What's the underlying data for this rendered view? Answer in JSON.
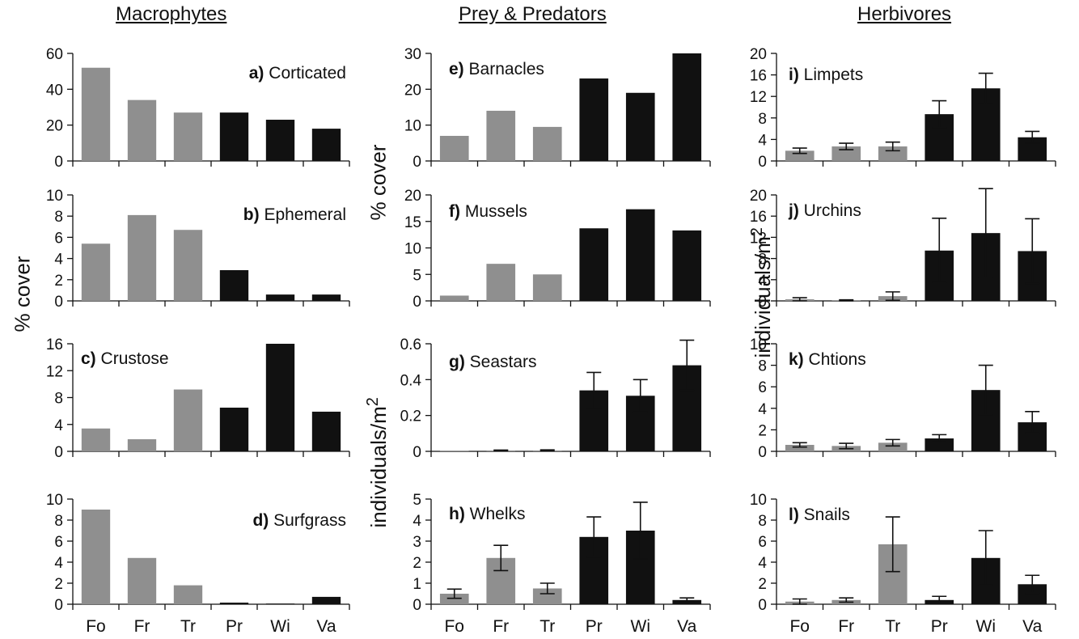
{
  "column_titles": [
    "Macrophytes",
    "Prey & Predators",
    "Herbivores"
  ],
  "axis_labels": {
    "macrophytes_y": "% cover",
    "prey_cover_y": "% cover",
    "prey_density_y": "individuals/m",
    "prey_density_y_sup": "2",
    "herbivores_y": "individuals/m",
    "herbivores_y_sup": "2"
  },
  "colors": {
    "gray": "#8f8f8f",
    "black": "#111111"
  },
  "chart_data": [
    {
      "id": "a",
      "type": "bar",
      "panel": "a)",
      "title": "Corticated",
      "categories": [
        "Fo",
        "Fr",
        "Tr",
        "Pr",
        "Wi",
        "Va"
      ],
      "values": [
        52,
        34,
        27,
        27,
        23,
        18
      ],
      "bar_colors": [
        "gray",
        "gray",
        "gray",
        "black",
        "black",
        "black"
      ],
      "ylim": [
        0,
        60
      ],
      "yticks": [
        "0",
        "20",
        "40",
        "60"
      ],
      "ylabel": "% cover",
      "show_xticklabels": false
    },
    {
      "id": "b",
      "type": "bar",
      "panel": "b)",
      "title": "Ephemeral",
      "categories": [
        "Fo",
        "Fr",
        "Tr",
        "Pr",
        "Wi",
        "Va"
      ],
      "values": [
        5.4,
        8.1,
        6.7,
        2.9,
        0.6,
        0.6
      ],
      "bar_colors": [
        "gray",
        "gray",
        "gray",
        "black",
        "black",
        "black"
      ],
      "ylim": [
        0,
        10
      ],
      "yticks": [
        "0",
        "2",
        "4",
        "6",
        "8",
        "10"
      ],
      "ylabel": "% cover",
      "show_xticklabels": false
    },
    {
      "id": "c",
      "type": "bar",
      "panel": "c)",
      "title": "Crustose",
      "categories": [
        "Fo",
        "Fr",
        "Tr",
        "Pr",
        "Wi",
        "Va"
      ],
      "values": [
        3.4,
        1.8,
        9.2,
        6.5,
        16,
        5.9
      ],
      "bar_colors": [
        "gray",
        "gray",
        "gray",
        "black",
        "black",
        "black"
      ],
      "ylim": [
        0,
        16
      ],
      "yticks": [
        "0",
        "4",
        "8",
        "12",
        "16"
      ],
      "ylabel": "% cover",
      "show_xticklabels": false
    },
    {
      "id": "d",
      "type": "bar",
      "panel": "d)",
      "title": "Surfgrass",
      "categories": [
        "Fo",
        "Fr",
        "Tr",
        "Pr",
        "Wi",
        "Va"
      ],
      "values": [
        9,
        4.4,
        1.8,
        0.15,
        0,
        0.7
      ],
      "bar_colors": [
        "gray",
        "gray",
        "gray",
        "black",
        "black",
        "black"
      ],
      "ylim": [
        0,
        10
      ],
      "yticks": [
        "0",
        "2",
        "4",
        "6",
        "8",
        "10"
      ],
      "ylabel": "% cover",
      "show_xticklabels": true
    },
    {
      "id": "e",
      "type": "bar",
      "panel": "e)",
      "title": "Barnacles",
      "categories": [
        "Fo",
        "Fr",
        "Tr",
        "Pr",
        "Wi",
        "Va"
      ],
      "values": [
        7,
        14,
        9.5,
        23,
        19,
        30
      ],
      "bar_colors": [
        "gray",
        "gray",
        "gray",
        "black",
        "black",
        "black"
      ],
      "ylim": [
        0,
        30
      ],
      "yticks": [
        "0",
        "10",
        "20",
        "30"
      ],
      "ylabel": "% cover",
      "show_xticklabels": false
    },
    {
      "id": "f",
      "type": "bar",
      "panel": "f)",
      "title": "Mussels",
      "categories": [
        "Fo",
        "Fr",
        "Tr",
        "Pr",
        "Wi",
        "Va"
      ],
      "values": [
        1,
        7,
        5,
        13.7,
        17.3,
        13.3
      ],
      "bar_colors": [
        "gray",
        "gray",
        "gray",
        "black",
        "black",
        "black"
      ],
      "ylim": [
        0,
        20
      ],
      "yticks": [
        "0",
        "5",
        "10",
        "15",
        "20"
      ],
      "ylabel": "% cover",
      "show_xticklabels": false
    },
    {
      "id": "g",
      "type": "bar",
      "panel": "g)",
      "title": "Seastars",
      "categories": [
        "Fo",
        "Fr",
        "Tr",
        "Pr",
        "Wi",
        "Va"
      ],
      "values": [
        0.002,
        0.005,
        0.005,
        0.34,
        0.31,
        0.48
      ],
      "errors": [
        0,
        0.002,
        0.003,
        0.1,
        0.09,
        0.14
      ],
      "bar_colors": [
        "gray",
        "gray",
        "gray",
        "black",
        "black",
        "black"
      ],
      "ylim": [
        0,
        0.6
      ],
      "yticks": [
        "0",
        "0.2",
        "0.4",
        "0.6"
      ],
      "ylabel": "individuals/m2",
      "show_xticklabels": false
    },
    {
      "id": "h",
      "type": "bar",
      "panel": "h)",
      "title": "Whelks",
      "categories": [
        "Fo",
        "Fr",
        "Tr",
        "Pr",
        "Wi",
        "Va"
      ],
      "values": [
        0.5,
        2.2,
        0.75,
        3.2,
        3.5,
        0.2
      ],
      "errors": [
        0.22,
        0.6,
        0.25,
        0.95,
        1.35,
        0.1
      ],
      "bar_colors": [
        "gray",
        "gray",
        "gray",
        "black",
        "black",
        "black"
      ],
      "ylim": [
        0,
        5
      ],
      "yticks": [
        "0",
        "1",
        "2",
        "3",
        "4",
        "5"
      ],
      "ylabel": "individuals/m2",
      "show_xticklabels": true
    },
    {
      "id": "i",
      "type": "bar",
      "panel": "i)",
      "title": "Limpets",
      "categories": [
        "Fo",
        "Fr",
        "Tr",
        "Pr",
        "Wi",
        "Va"
      ],
      "values": [
        1.9,
        2.7,
        2.7,
        8.7,
        13.5,
        4.4
      ],
      "errors": [
        0.5,
        0.6,
        0.8,
        2.5,
        2.8,
        1.1
      ],
      "bar_colors": [
        "gray",
        "gray",
        "gray",
        "black",
        "black",
        "black"
      ],
      "ylim": [
        0,
        20
      ],
      "yticks": [
        "0",
        "4",
        "8",
        "12",
        "16",
        "20"
      ],
      "ylabel": "individuals/m2",
      "show_xticklabels": false
    },
    {
      "id": "j",
      "type": "bar",
      "panel": "j)",
      "title": "Urchins",
      "categories": [
        "Fo",
        "Fr",
        "Tr",
        "Pr",
        "Wi",
        "Va"
      ],
      "values": [
        0.3,
        0.1,
        0.9,
        9.5,
        12.8,
        9.4
      ],
      "errors": [
        0.3,
        0.1,
        0.8,
        6.1,
        8.4,
        6.1
      ],
      "bar_colors": [
        "gray",
        "gray",
        "gray",
        "black",
        "black",
        "black"
      ],
      "ylim": [
        0,
        20
      ],
      "yticks": [
        "0",
        "4",
        "8",
        "12",
        "16",
        "20"
      ],
      "ylabel": "individuals/m2",
      "show_xticklabels": false
    },
    {
      "id": "k",
      "type": "bar",
      "panel": "k)",
      "title": "Chtions",
      "categories": [
        "Fo",
        "Fr",
        "Tr",
        "Pr",
        "Wi",
        "Va"
      ],
      "values": [
        0.6,
        0.5,
        0.8,
        1.2,
        5.7,
        2.7
      ],
      "errors": [
        0.2,
        0.25,
        0.3,
        0.35,
        2.3,
        1
      ],
      "bar_colors": [
        "gray",
        "gray",
        "gray",
        "black",
        "black",
        "black"
      ],
      "ylim": [
        0,
        10
      ],
      "yticks": [
        "0",
        "2",
        "4",
        "6",
        "8",
        "10"
      ],
      "ylabel": "individuals/m2",
      "show_xticklabels": false
    },
    {
      "id": "l",
      "type": "bar",
      "panel": "l)",
      "title": "Snails",
      "categories": [
        "Fo",
        "Fr",
        "Tr",
        "Pr",
        "Wi",
        "Va"
      ],
      "values": [
        0.25,
        0.4,
        5.7,
        0.4,
        4.4,
        1.9
      ],
      "errors": [
        0.25,
        0.2,
        2.6,
        0.35,
        2.6,
        0.85
      ],
      "bar_colors": [
        "gray",
        "gray",
        "gray",
        "black",
        "black",
        "black"
      ],
      "ylim": [
        0,
        10
      ],
      "yticks": [
        "0",
        "2",
        "4",
        "6",
        "8",
        "10"
      ],
      "ylabel": "individuals/m2",
      "show_xticklabels": true
    }
  ]
}
